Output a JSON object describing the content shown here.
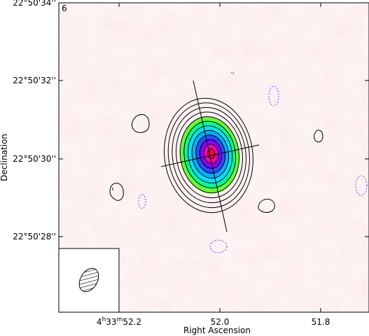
{
  "panel_label": "6",
  "colors": {
    "background": "#fde9ea",
    "negative_contour": "#5b5bff",
    "positive_contour": "#000000"
  },
  "x_axis": {
    "title": "Right Ascension",
    "ticks": [
      {
        "value_sec": 52.2,
        "label_prefix": "4",
        "h": "h",
        "m_value": "33",
        "m": "m",
        "s_value": "52.2",
        "s": "s"
      },
      {
        "value_sec": 52.0,
        "label": "52.0"
      },
      {
        "value_sec": 51.8,
        "label": "51.8"
      }
    ]
  },
  "y_axis": {
    "title": "Declination",
    "ticks": [
      {
        "value_arcsec": 34,
        "label": "22°50'34''"
      },
      {
        "value_arcsec": 32,
        "label": "22°50'32''"
      },
      {
        "value_arcsec": 30,
        "label": "22°50'30''"
      },
      {
        "value_arcsec": 28,
        "label": "22°50'28''"
      }
    ]
  },
  "source": {
    "ra_sec": 52.02,
    "dec_arcsec": 30.05,
    "contour_levels": 12
  },
  "beam": {
    "shape": "hatched-ellipse"
  }
}
